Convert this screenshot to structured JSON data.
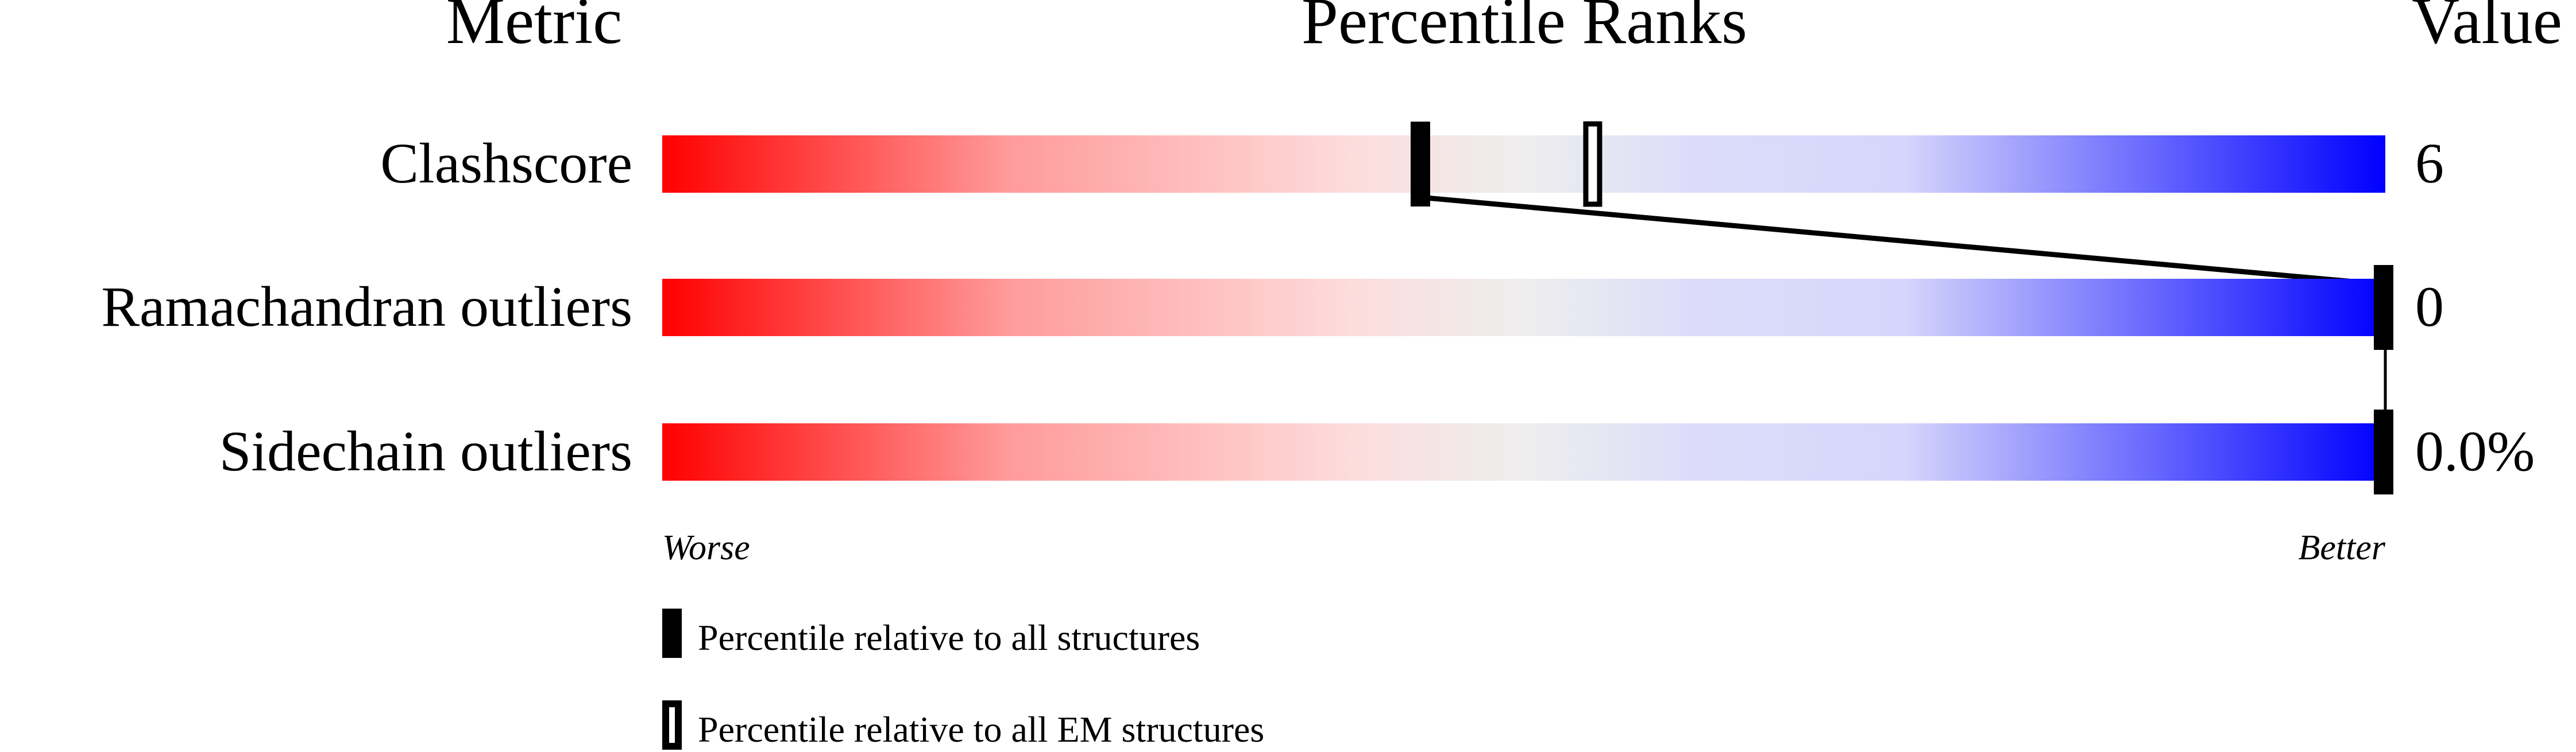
{
  "chart_data": {
    "type": "percentile-slider",
    "headers": {
      "metric": "Metric",
      "ranks": "Percentile Ranks",
      "value": "Value"
    },
    "xlim": [
      0,
      100
    ],
    "axis_labels": {
      "left": "Worse",
      "right": "Better"
    },
    "rows": [
      {
        "metric": "Clashscore",
        "value": "6",
        "percentile_all": 44,
        "percentile_em": 54
      },
      {
        "metric": "Ramachandran outliers",
        "value": "0",
        "percentile_all": 100,
        "percentile_em": null
      },
      {
        "metric": "Sidechain outliers",
        "value": "0.0%",
        "percentile_all": 100,
        "percentile_em": null
      }
    ],
    "legend": [
      {
        "marker": "filled",
        "label": "Percentile relative to all structures"
      },
      {
        "marker": "open",
        "label": "Percentile relative to all EM structures"
      }
    ],
    "gradient_colors": {
      "worse": "#ff0000",
      "middle": "#eeeeee",
      "better": "#0000ff"
    }
  }
}
